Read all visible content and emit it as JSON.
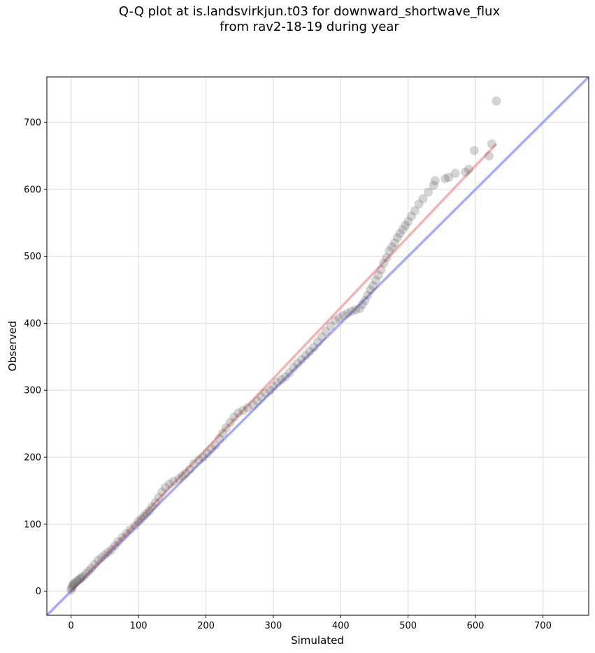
{
  "title_line1": "Q-Q plot at is.landsvirkjun.t03 for downward_shortwave_flux",
  "title_line2": "from rav2-18-19 during year",
  "chart_data": {
    "type": "scatter",
    "title": "Q-Q plot at is.landsvirkjun.t03 for downward_shortwave_flux\nfrom rav2-18-19 during year",
    "xlabel": "Simulated",
    "ylabel": "Observed",
    "xlim": [
      -36,
      768
    ],
    "ylim": [
      -36,
      768
    ],
    "xticks": [
      0,
      100,
      200,
      300,
      400,
      500,
      600,
      700
    ],
    "yticks": [
      0,
      100,
      200,
      300,
      400,
      500,
      600,
      700
    ],
    "grid": true,
    "colors": {
      "points": "#555555",
      "fit_line": "#f08080",
      "identity_line": "#7b7bff"
    },
    "identity_line": {
      "from": [
        -36,
        -36
      ],
      "to": [
        768,
        768
      ]
    },
    "fit_line": {
      "from": [
        0,
        0
      ],
      "to": [
        631,
        668
      ]
    },
    "points": {
      "x": [
        0,
        1,
        2,
        3,
        5,
        8,
        10,
        13,
        15,
        18,
        22,
        26,
        30,
        35,
        40,
        45,
        50,
        55,
        60,
        65,
        70,
        76,
        82,
        88,
        95,
        100,
        104,
        108,
        112,
        116,
        120,
        125,
        130,
        135,
        140,
        146,
        152,
        160,
        165,
        170,
        176,
        182,
        190,
        196,
        202,
        208,
        214,
        220,
        225,
        230,
        236,
        242,
        248,
        255,
        262,
        270,
        276,
        282,
        288,
        295,
        300,
        306,
        312,
        318,
        324,
        330,
        336,
        342,
        348,
        354,
        360,
        366,
        372,
        378,
        385,
        392,
        398,
        404,
        410,
        416,
        422,
        428,
        432,
        436,
        440,
        444,
        448,
        452,
        456,
        460,
        464,
        468,
        472,
        476,
        480,
        484,
        488,
        492,
        496,
        500,
        505,
        510,
        516,
        522,
        530,
        538,
        540,
        555,
        560,
        570,
        585,
        590,
        598,
        620,
        624,
        631
      ],
      "y": [
        2,
        5,
        8,
        10,
        12,
        14,
        16,
        18,
        20,
        22,
        26,
        30,
        34,
        40,
        46,
        50,
        54,
        58,
        62,
        68,
        74,
        80,
        86,
        92,
        98,
        104,
        108,
        112,
        116,
        120,
        126,
        132,
        140,
        148,
        155,
        160,
        164,
        168,
        172,
        176,
        182,
        190,
        196,
        200,
        206,
        212,
        218,
        228,
        236,
        244,
        252,
        260,
        266,
        270,
        274,
        278,
        284,
        290,
        296,
        300,
        306,
        312,
        316,
        320,
        326,
        334,
        340,
        346,
        352,
        358,
        364,
        372,
        380,
        388,
        396,
        404,
        408,
        412,
        415,
        418,
        420,
        422,
        428,
        434,
        442,
        450,
        456,
        464,
        472,
        480,
        490,
        498,
        508,
        514,
        520,
        528,
        534,
        540,
        546,
        552,
        560,
        568,
        578,
        586,
        596,
        606,
        613,
        616,
        618,
        624,
        626,
        630,
        658,
        650,
        668,
        732
      ]
    }
  }
}
